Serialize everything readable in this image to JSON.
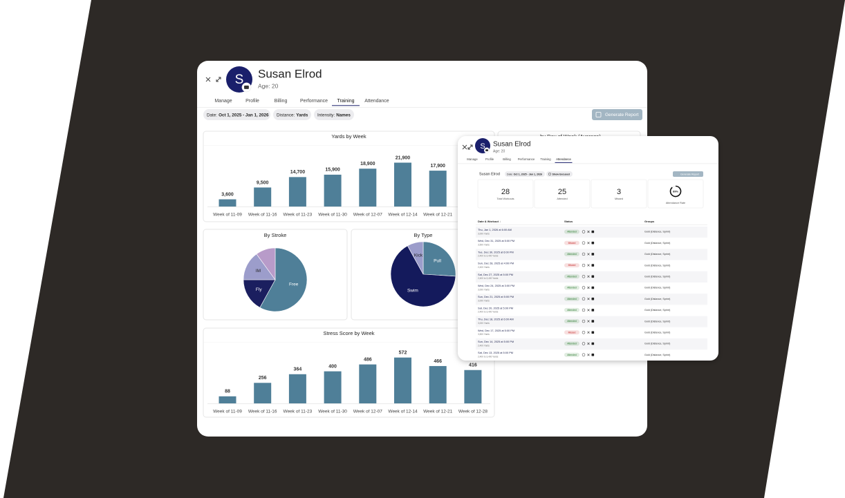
{
  "main": {
    "header": {
      "initial": "S",
      "name": "Susan Elrod",
      "age": "Age: 20"
    },
    "tabs": [
      {
        "label": "Manage",
        "active": false
      },
      {
        "label": "Profile",
        "active": false
      },
      {
        "label": "Billing",
        "active": false
      },
      {
        "label": "Performance",
        "active": false
      },
      {
        "label": "Training",
        "active": true
      },
      {
        "label": "Attendance",
        "active": false
      }
    ],
    "filters": [
      {
        "label": "Date:",
        "value": "Oct 1, 2025 - Jan 1, 2026"
      },
      {
        "label": "Distance:",
        "value": "Yards"
      },
      {
        "label": "Intensity:",
        "value": "Names"
      }
    ],
    "button": "Generate Report",
    "partial_title": "by Day of Week (Average)"
  },
  "chart_data": [
    {
      "type": "bar",
      "title": "Yards by Week",
      "categories": [
        "Week of 11-09",
        "Week of 11-16",
        "Week of 11-23",
        "Week of 11-30",
        "Week of 12-07",
        "Week of 12-14",
        "Week of 12-21"
      ],
      "values": [
        3600,
        9500,
        14700,
        15900,
        18900,
        21900,
        17900
      ],
      "value_labels": [
        "3,600",
        "9,500",
        "14,700",
        "15,900",
        "18,900",
        "21,900",
        "17,900"
      ],
      "color": "#4f7f98",
      "ylim": [
        0,
        30000
      ]
    },
    {
      "type": "pie",
      "title": "By Stroke",
      "categories": [
        "Free",
        "Fly",
        "IM",
        null
      ],
      "values": [
        58,
        17,
        15,
        10
      ],
      "colors": [
        "#4f7f98",
        "#1b1f5f",
        "#9c9dcb",
        "#b89bc9"
      ]
    },
    {
      "type": "pie",
      "title": "By Type",
      "categories": [
        "Pull",
        "Swim",
        "Kick"
      ],
      "values": [
        26,
        66,
        8
      ],
      "colors": [
        "#4f7f98",
        "#141a5c",
        "#9c9dcb"
      ]
    },
    {
      "type": "bar",
      "title": "Stress Score by Week",
      "categories": [
        "Week of 11-09",
        "Week of 11-16",
        "Week of 11-23",
        "Week of 11-30",
        "Week of 12-07",
        "Week of 12-14",
        "Week of 12-21",
        "Week of 12-28"
      ],
      "values": [
        88,
        256,
        364,
        400,
        486,
        572,
        466,
        416
      ],
      "color": "#4f7f98",
      "ylim": [
        0,
        750
      ]
    }
  ],
  "attendance": {
    "header": {
      "initial": "S",
      "name": "Susan Elrod",
      "age": "Age: 20"
    },
    "tabs": [
      {
        "label": "Manage",
        "active": false
      },
      {
        "label": "Profile",
        "active": false
      },
      {
        "label": "Billing",
        "active": false
      },
      {
        "label": "Performance",
        "active": false
      },
      {
        "label": "Training",
        "active": false
      },
      {
        "label": "Attendance",
        "active": true
      }
    ],
    "athlete": "Susan Elrod",
    "date_chip": {
      "label": "Date:",
      "value": "Oct 1, 2025 - Jan 1, 2026"
    },
    "excused": "Show Excused",
    "button": "Generate Report",
    "stats": [
      {
        "value": 28,
        "label": "Total Workouts"
      },
      {
        "value": 25,
        "label": "Attended"
      },
      {
        "value": 3,
        "label": "Missed"
      }
    ],
    "rate": {
      "value": 89,
      "value_label": "89%",
      "label": "Attendance Rate"
    },
    "columns": [
      "Date & Workout ↓",
      "Status",
      "Groups"
    ],
    "rows": [
      {
        "date": "Thu, Jan 1, 2026 at 6:00 AM",
        "yards": "3,000 Yards",
        "status": {
          "label": "Attended",
          "color": "#2e7d32"
        },
        "groups": "Gold (Distance, Sprint)"
      },
      {
        "date": "Wed, Dec 31, 2025 at 5:00 PM",
        "yards": "3,500 Yards",
        "status": {
          "label": "Missed",
          "color": "#c62828"
        },
        "groups": "Gold (Distance, Sprint)"
      },
      {
        "date": "Tue, Dec 30, 2025 at 6:00 PM",
        "yards": "2,400 to 3,400 Yards",
        "status": {
          "label": "Attended",
          "color": "#2e7d32"
        },
        "groups": "Gold (Distance, Sprint)"
      },
      {
        "date": "Sun, Dec 28, 2025 at 4:00 PM",
        "yards": "2,400 Yards",
        "status": {
          "label": "Missed",
          "color": "#c62828"
        },
        "groups": "Gold (Distance, Sprint)"
      },
      {
        "date": "Sat, Dec 27, 2025 at 5:00 PM",
        "yards": "2,400 to 3,400 Yards",
        "status": {
          "label": "Attended",
          "color": "#2e7d32"
        },
        "groups": "Gold (Distance, Sprint)"
      },
      {
        "date": "Wed, Dec 24, 2025 at 3:00 PM",
        "yards": "3,000 Yards",
        "status": {
          "label": "Attended",
          "color": "#2e7d32"
        },
        "groups": "Gold (Distance, Sprint)"
      },
      {
        "date": "Sun, Dec 21, 2025 at 5:00 PM",
        "yards": "3,000 Yards",
        "status": {
          "label": "Attended",
          "color": "#2e7d32"
        },
        "groups": "Gold (Distance, Sprint)"
      },
      {
        "date": "Sat, Dec 20, 2025 at 5:00 PM",
        "yards": "2,400 to 3,400 Yards",
        "status": {
          "label": "Attended",
          "color": "#2e7d32"
        },
        "groups": "Gold (Distance, Sprint)"
      },
      {
        "date": "Thu, Dec 18, 2025 at 6:00 AM",
        "yards": "3,000 Yards",
        "status": {
          "label": "Attended",
          "color": "#2e7d32"
        },
        "groups": "Gold (Distance, Sprint)"
      },
      {
        "date": "Wed, Dec 17, 2025 at 5:00 PM",
        "yards": "3,500 Yards",
        "status": {
          "label": "Missed",
          "color": "#c62828"
        },
        "groups": "Gold (Distance, Sprint)"
      },
      {
        "date": "Sun, Dec 14, 2025 at 5:00 PM",
        "yards": "2,400 Yards",
        "status": {
          "label": "Attended",
          "color": "#2e7d32"
        },
        "groups": "Gold (Distance, Sprint)"
      },
      {
        "date": "Sat, Dec 13, 2025 at 5:00 PM",
        "yards": "2,400 to 3,400 Yards",
        "status": {
          "label": "Attended",
          "color": "#2e7d32"
        },
        "groups": "Gold (Distance, Sprint)"
      }
    ]
  }
}
